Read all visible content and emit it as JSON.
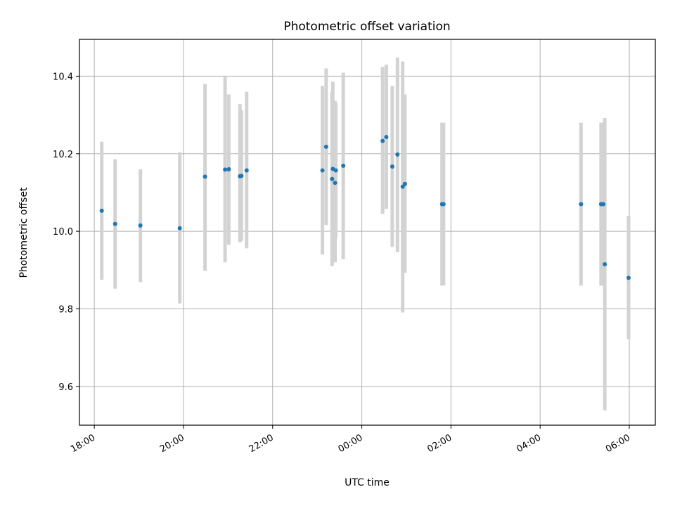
{
  "chart_data": {
    "type": "scatter",
    "title": "Photometric offset variation",
    "xlabel": "UTC time",
    "ylabel": "Photometric offset",
    "x_unit": "datetime",
    "xlim": [
      "2024-01-01 17:40",
      "2024-01-02 06:35"
    ],
    "ylim": [
      9.5,
      10.495
    ],
    "x_ticks": [
      {
        "t": "2024-01-01 18:00",
        "label": "18:00"
      },
      {
        "t": "2024-01-01 20:00",
        "label": "20:00"
      },
      {
        "t": "2024-01-01 22:00",
        "label": "22:00"
      },
      {
        "t": "2024-01-02 00:00",
        "label": "00:00"
      },
      {
        "t": "2024-01-02 02:00",
        "label": "02:00"
      },
      {
        "t": "2024-01-02 04:00",
        "label": "04:00"
      },
      {
        "t": "2024-01-02 06:00",
        "label": "06:00"
      }
    ],
    "y_ticks": [
      {
        "v": 9.6,
        "label": "9.6"
      },
      {
        "v": 9.8,
        "label": "9.8"
      },
      {
        "v": 10.0,
        "label": "10.0"
      },
      {
        "v": 10.2,
        "label": "10.2"
      },
      {
        "v": 10.4,
        "label": "10.4"
      }
    ],
    "grid": true,
    "point_color": "#1f77b4",
    "errorbar_color": "#d3d3d3",
    "points": [
      {
        "t": "2024-01-01 18:10",
        "y": 10.053,
        "lo": 9.875,
        "hi": 10.231
      },
      {
        "t": "2024-01-01 18:28",
        "y": 10.019,
        "lo": 9.852,
        "hi": 10.186
      },
      {
        "t": "2024-01-01 19:02",
        "y": 10.015,
        "lo": 9.869,
        "hi": 10.16
      },
      {
        "t": "2024-01-01 19:55",
        "y": 10.008,
        "lo": 9.814,
        "hi": 10.204
      },
      {
        "t": "2024-01-01 20:29",
        "y": 10.141,
        "lo": 9.898,
        "hi": 10.38
      },
      {
        "t": "2024-01-01 20:56",
        "y": 10.159,
        "lo": 9.92,
        "hi": 10.4
      },
      {
        "t": "2024-01-01 21:01",
        "y": 10.16,
        "lo": 9.965,
        "hi": 10.353
      },
      {
        "t": "2024-01-01 21:16",
        "y": 10.142,
        "lo": 9.972,
        "hi": 10.328
      },
      {
        "t": "2024-01-01 21:18",
        "y": 10.143,
        "lo": 9.975,
        "hi": 10.312
      },
      {
        "t": "2024-01-01 21:25",
        "y": 10.157,
        "lo": 9.956,
        "hi": 10.36
      },
      {
        "t": "2024-01-01 23:07",
        "y": 10.157,
        "lo": 9.94,
        "hi": 10.375
      },
      {
        "t": "2024-01-01 23:12",
        "y": 10.218,
        "lo": 10.016,
        "hi": 10.42
      },
      {
        "t": "2024-01-01 23:20",
        "y": 10.135,
        "lo": 9.91,
        "hi": 10.36
      },
      {
        "t": "2024-01-01 23:21",
        "y": 10.161,
        "lo": 9.935,
        "hi": 10.386
      },
      {
        "t": "2024-01-01 23:24",
        "y": 10.125,
        "lo": 9.92,
        "hi": 10.336
      },
      {
        "t": "2024-01-01 23:25",
        "y": 10.157,
        "lo": 9.985,
        "hi": 10.33
      },
      {
        "t": "2024-01-01 23:35",
        "y": 10.169,
        "lo": 9.928,
        "hi": 10.409
      },
      {
        "t": "2024-01-02 00:28",
        "y": 10.233,
        "lo": 10.045,
        "hi": 10.424
      },
      {
        "t": "2024-01-02 00:33",
        "y": 10.243,
        "lo": 10.058,
        "hi": 10.43
      },
      {
        "t": "2024-01-02 00:41",
        "y": 10.167,
        "lo": 9.96,
        "hi": 10.375
      },
      {
        "t": "2024-01-02 00:48",
        "y": 10.198,
        "lo": 9.946,
        "hi": 10.448
      },
      {
        "t": "2024-01-02 00:55",
        "y": 10.115,
        "lo": 9.791,
        "hi": 10.438
      },
      {
        "t": "2024-01-02 00:58",
        "y": 10.122,
        "lo": 9.893,
        "hi": 10.353
      },
      {
        "t": "2024-01-02 01:48",
        "y": 10.07,
        "lo": 9.86,
        "hi": 10.28
      },
      {
        "t": "2024-01-02 01:50",
        "y": 10.07,
        "lo": 9.86,
        "hi": 10.28
      },
      {
        "t": "2024-01-02 04:55",
        "y": 10.07,
        "lo": 9.86,
        "hi": 10.28
      },
      {
        "t": "2024-01-02 05:22",
        "y": 10.07,
        "lo": 9.86,
        "hi": 10.28
      },
      {
        "t": "2024-01-02 05:25",
        "y": 10.07,
        "lo": 9.86,
        "hi": 10.28
      },
      {
        "t": "2024-01-02 05:27",
        "y": 9.915,
        "lo": 9.538,
        "hi": 10.292
      },
      {
        "t": "2024-01-02 05:59",
        "y": 9.88,
        "lo": 9.722,
        "hi": 10.04
      }
    ]
  }
}
